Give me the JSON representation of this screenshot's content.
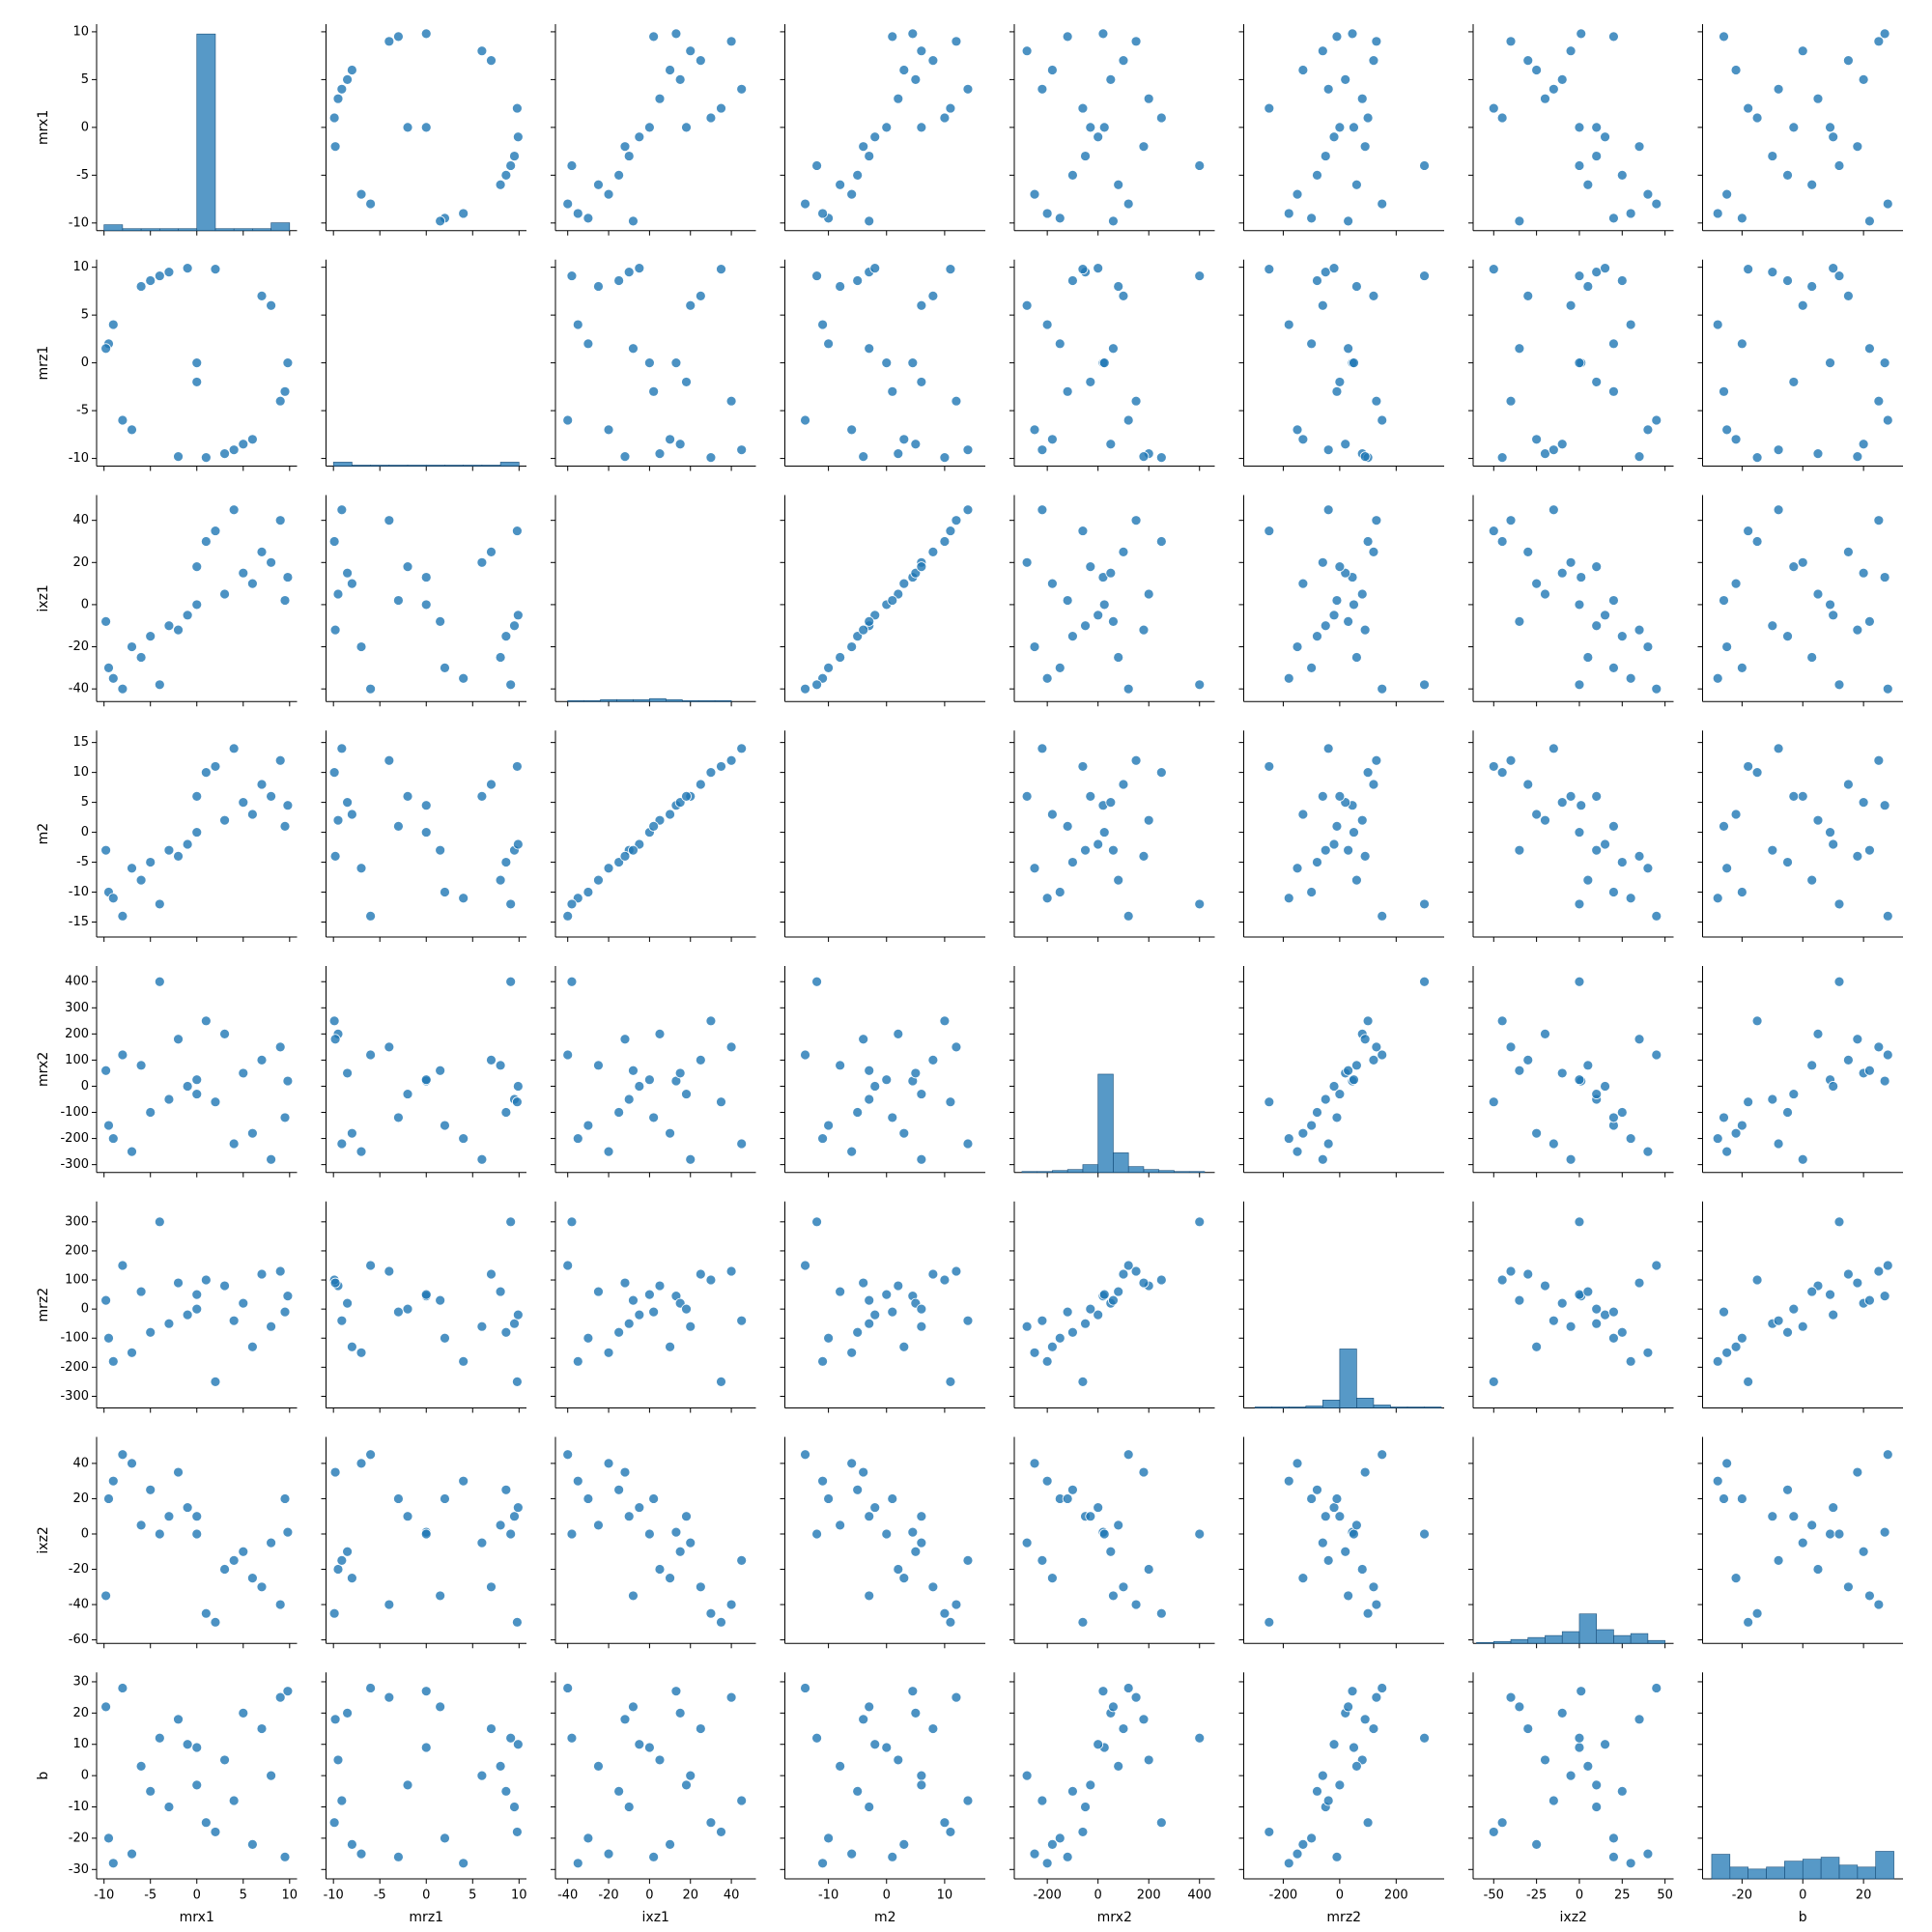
{
  "chart_data": {
    "type": "pairplot",
    "color": "#1f77b4",
    "hist_ylim": [
      0,
      210
    ],
    "variables": [
      {
        "name": "mrx1",
        "lim": [
          -10.8,
          10.8
        ],
        "xticks": [
          -10,
          -5,
          0,
          5,
          10
        ],
        "yticks": [
          -10,
          -5,
          0,
          5,
          10
        ],
        "values": [
          9.8,
          -9.5,
          0,
          7,
          -7,
          3,
          -3,
          9,
          -9,
          5,
          -5,
          1,
          -1,
          8,
          -8,
          6,
          -6,
          2,
          -2,
          4,
          -4,
          9.5,
          -9.8,
          0
        ],
        "hist": {
          "bins": [
            -10,
            -8,
            -6,
            -4,
            -2,
            0,
            2,
            4,
            6,
            8,
            10
          ],
          "counts": [
            6,
            2,
            2,
            2,
            2,
            200,
            2,
            2,
            2,
            8
          ]
        }
      },
      {
        "name": "mrz1",
        "lim": [
          -10.8,
          10.8
        ],
        "xticks": [
          -10,
          -5,
          0,
          5,
          10
        ],
        "yticks": [
          -10,
          -5,
          0,
          5,
          10
        ],
        "values": [
          0,
          2,
          0,
          7,
          -7,
          -9.5,
          9.5,
          -4,
          4,
          -8.5,
          8.6,
          -9.9,
          9.9,
          6,
          -6,
          -8,
          8,
          9.8,
          -9.8,
          -9.1,
          9.1,
          -3,
          1.5,
          -2
        ],
        "hist": {
          "bins": [
            -10,
            -8,
            -6,
            -4,
            -2,
            0,
            2,
            4,
            6,
            8,
            10
          ],
          "counts": [
            4,
            1,
            1,
            1,
            1,
            1,
            1,
            1,
            1,
            4
          ]
        }
      },
      {
        "name": "ixz1",
        "lim": [
          -46,
          52
        ],
        "xticks": [
          -40,
          -20,
          0,
          20,
          40
        ],
        "yticks": [
          -40,
          -20,
          0,
          20,
          40
        ],
        "values": [
          13,
          -30,
          0,
          25,
          -20,
          5,
          -10,
          40,
          -35,
          15,
          -15,
          30,
          -5,
          20,
          -40,
          10,
          -25,
          35,
          -12,
          45,
          -38,
          2,
          -8,
          18
        ],
        "hist": {
          "bins": [
            -40,
            -32,
            -24,
            -16,
            -8,
            0,
            8,
            16,
            24,
            32,
            40
          ],
          "counts": [
            1,
            1,
            2,
            2,
            2,
            3,
            2,
            1,
            1,
            1
          ]
        }
      },
      {
        "name": "m2",
        "lim": [
          -17.5,
          17
        ],
        "xticks": [
          -10,
          0,
          10
        ],
        "yticks": [
          -15,
          -10,
          -5,
          0,
          5,
          10,
          15
        ],
        "values": [
          4.5,
          -10,
          0,
          8,
          -6,
          2,
          -3,
          12,
          -11,
          5,
          -5,
          10,
          -2,
          6,
          -14,
          3,
          -8,
          11,
          -4,
          14,
          -12,
          1,
          -3,
          6
        ],
        "hist": {
          "bins": [
            -15,
            -12,
            -9,
            -6,
            -3,
            0,
            3,
            6,
            9,
            12,
            15
          ],
          "counts": [
            0,
            0,
            0,
            0,
            0,
            0,
            0,
            0,
            0,
            0
          ]
        }
      },
      {
        "name": "mrx2",
        "lim": [
          -330,
          460
        ],
        "xticks": [
          -200,
          0,
          200,
          400
        ],
        "yticks": [
          -300,
          -200,
          -100,
          0,
          100,
          200,
          300,
          400
        ],
        "values": [
          20,
          -150,
          25,
          100,
          -250,
          200,
          -50,
          150,
          -200,
          50,
          -100,
          250,
          0,
          -280,
          120,
          -180,
          80,
          -60,
          180,
          -220,
          400,
          -120,
          60,
          -30
        ],
        "hist": {
          "bins": [
            -300,
            -240,
            -180,
            -120,
            -60,
            0,
            60,
            120,
            180,
            240,
            300,
            360,
            420
          ],
          "counts": [
            1,
            1,
            2,
            3,
            8,
            100,
            20,
            6,
            3,
            2,
            1,
            1
          ]
        }
      },
      {
        "name": "mrz2",
        "lim": [
          -340,
          370
        ],
        "xticks": [
          -200,
          0,
          200
        ],
        "yticks": [
          -300,
          -200,
          -100,
          0,
          100,
          200,
          300
        ],
        "values": [
          45,
          -100,
          50,
          120,
          -150,
          80,
          -50,
          130,
          -180,
          20,
          -80,
          100,
          -20,
          -60,
          150,
          -130,
          60,
          -250,
          90,
          -40,
          300,
          -10,
          30,
          0
        ],
        "hist": {
          "bins": [
            -300,
            -240,
            -180,
            -120,
            -60,
            0,
            60,
            120,
            180,
            240,
            300,
            360
          ],
          "counts": [
            1,
            1,
            1,
            2,
            8,
            60,
            10,
            3,
            1,
            1,
            1
          ]
        }
      },
      {
        "name": "ixz2",
        "lim": [
          -62,
          55
        ],
        "xticks": [
          -50,
          -25,
          0,
          25,
          50
        ],
        "yticks": [
          -60,
          -40,
          -20,
          0,
          20,
          40
        ],
        "values": [
          1,
          20,
          0,
          -30,
          40,
          -20,
          10,
          -40,
          30,
          -10,
          25,
          -45,
          15,
          -5,
          45,
          -25,
          5,
          -50,
          35,
          -15,
          0,
          20,
          -35,
          10
        ],
        "hist": {
          "bins": [
            -60,
            -50,
            -40,
            -30,
            -20,
            -10,
            0,
            10,
            20,
            30,
            40,
            50
          ],
          "counts": [
            1,
            2,
            4,
            6,
            8,
            12,
            30,
            14,
            8,
            10,
            3
          ]
        }
      },
      {
        "name": "b",
        "lim": [
          -33,
          33
        ],
        "xticks": [
          -20,
          0,
          20
        ],
        "yticks": [
          -30,
          -20,
          -10,
          0,
          10,
          20,
          30
        ],
        "values": [
          27,
          -20,
          9,
          15,
          -25,
          5,
          -10,
          25,
          -28,
          20,
          -5,
          -15,
          10,
          0,
          28,
          -22,
          3,
          -18,
          18,
          -8,
          12,
          -26,
          22,
          -3
        ],
        "hist": {
          "bins": [
            -30,
            -24,
            -18,
            -12,
            -6,
            0,
            6,
            12,
            18,
            24,
            30
          ],
          "counts": [
            25,
            12,
            10,
            12,
            18,
            20,
            22,
            14,
            12,
            28
          ]
        }
      }
    ]
  }
}
